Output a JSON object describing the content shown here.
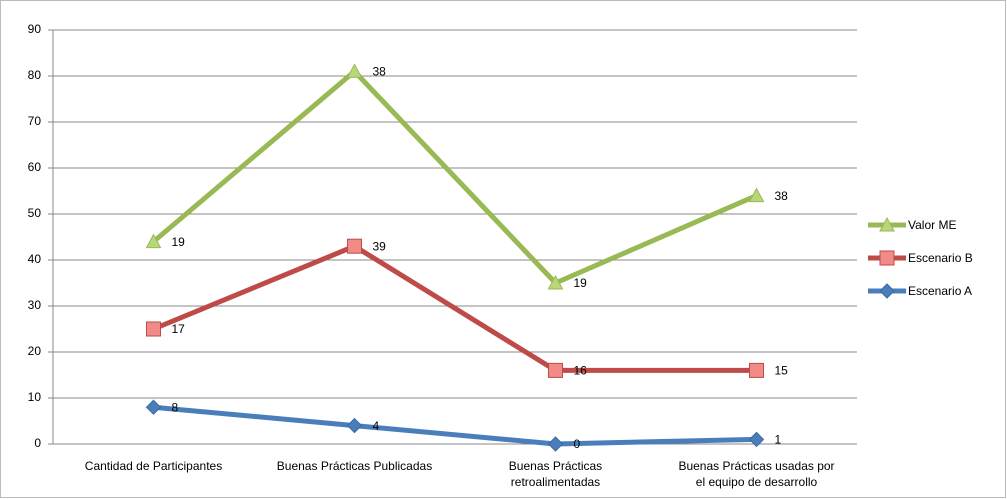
{
  "chart_data": {
    "type": "line",
    "stacked": true,
    "categories": [
      "Cantidad de Participantes",
      "Buenas Prácticas Publicadas",
      "Buenas Prácticas retroalimentadas",
      "Buenas Prácticas usadas por el equipo de desarrollo"
    ],
    "series": [
      {
        "name": "Escenario A",
        "color": "#4a7ebb",
        "marker": "diamond",
        "values": [
          8,
          4,
          0,
          1
        ]
      },
      {
        "name": "Escenario B",
        "color": "#be4b48",
        "marker": "square",
        "values": [
          17,
          39,
          16,
          15
        ]
      },
      {
        "name": "Valor ME",
        "color": "#98b954",
        "marker": "triangle",
        "values": [
          19,
          38,
          19,
          38
        ]
      }
    ],
    "ylim": [
      0,
      90
    ],
    "yticks": [
      0,
      10,
      20,
      30,
      40,
      50,
      60,
      70,
      80,
      90
    ],
    "grid": true,
    "legend": "right"
  }
}
